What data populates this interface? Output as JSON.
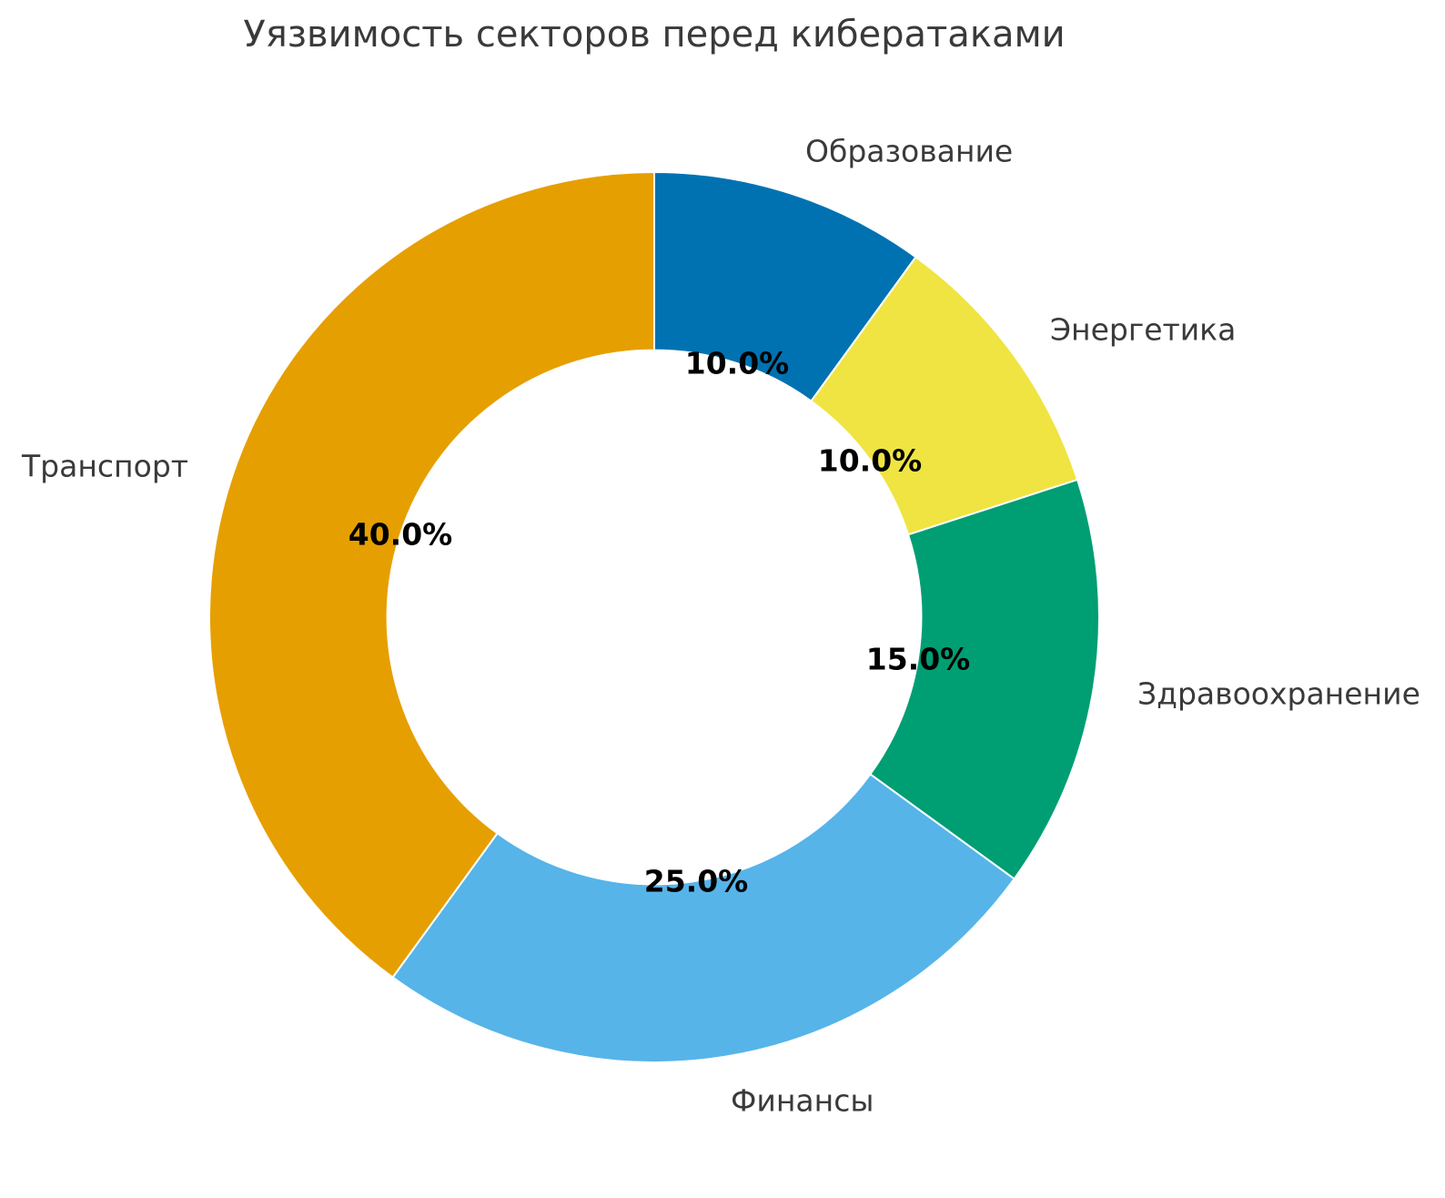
{
  "chart_data": {
    "type": "pie",
    "subtype": "donut",
    "title": "Уязвимость секторов перед кибератаками",
    "categories": [
      "Образование",
      "Энергетика",
      "Здравоохранение",
      "Финансы",
      "Транспорт"
    ],
    "values": [
      10.0,
      10.0,
      15.0,
      25.0,
      40.0
    ],
    "percent_labels": [
      "10.0%",
      "10.0%",
      "15.0%",
      "25.0%",
      "40.0%"
    ],
    "colors": [
      "#0072B2",
      "#F0E442",
      "#009E73",
      "#56B4E9",
      "#E69F00"
    ],
    "start_angle_deg": 90,
    "clockwise": true,
    "inner_radius_ratio": 0.6,
    "label_distance_ratio": 1.1,
    "pct_distance_ratio": 0.6,
    "wedge_edge_color": "#FFFFFF",
    "title_color": "#3A3A3A",
    "label_color": "#3A3A3A",
    "pct_label_color": "#000000",
    "background_color": "#FFFFFF",
    "legend": "none",
    "grid": "off"
  }
}
